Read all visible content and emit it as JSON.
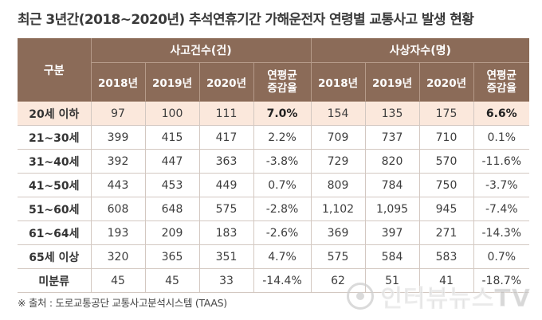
{
  "title": "최근 3년간(2018~2020년) 추석연휴기간 가해운전자 연령별 교통사고 발생 현황",
  "table": {
    "label_header": "구분",
    "groups": [
      "사고건수(건)",
      "사상자수(명)"
    ],
    "years": [
      "2018년",
      "2019년",
      "2020년"
    ],
    "rate_header": [
      "연평균",
      "증감율"
    ],
    "rows": [
      {
        "label": "20세 이하",
        "cells": [
          "97",
          "100",
          "111",
          "7.0%",
          "154",
          "135",
          "175",
          "6.6%"
        ]
      },
      {
        "label": "21~30세",
        "cells": [
          "399",
          "415",
          "417",
          "2.2%",
          "709",
          "737",
          "710",
          "0.1%"
        ]
      },
      {
        "label": "31~40세",
        "cells": [
          "392",
          "447",
          "363",
          "-3.8%",
          "729",
          "820",
          "570",
          "-11.6%"
        ]
      },
      {
        "label": "41~50세",
        "cells": [
          "443",
          "453",
          "449",
          "0.7%",
          "809",
          "784",
          "750",
          "-3.7%"
        ]
      },
      {
        "label": "51~60세",
        "cells": [
          "608",
          "648",
          "575",
          "-2.8%",
          "1,102",
          "1,095",
          "945",
          "-7.4%"
        ]
      },
      {
        "label": "61~64세",
        "cells": [
          "193",
          "209",
          "183",
          "-2.6%",
          "369",
          "397",
          "271",
          "-14.3%"
        ]
      },
      {
        "label": "65세 이상",
        "cells": [
          "320",
          "365",
          "351",
          "4.7%",
          "575",
          "584",
          "583",
          "0.7%"
        ]
      },
      {
        "label": "미분류",
        "cells": [
          "45",
          "45",
          "33",
          "-14.4%",
          "62",
          "51",
          "41",
          "-18.7%"
        ]
      }
    ]
  },
  "source": "※ 출처 : 도로교통공단 교통사고분석시스템 (TAAS)",
  "watermark": "인터뷰뉴스TV",
  "colors": {
    "header_bg": "#8b6b58",
    "highlight_row": "#fbe8dc"
  }
}
